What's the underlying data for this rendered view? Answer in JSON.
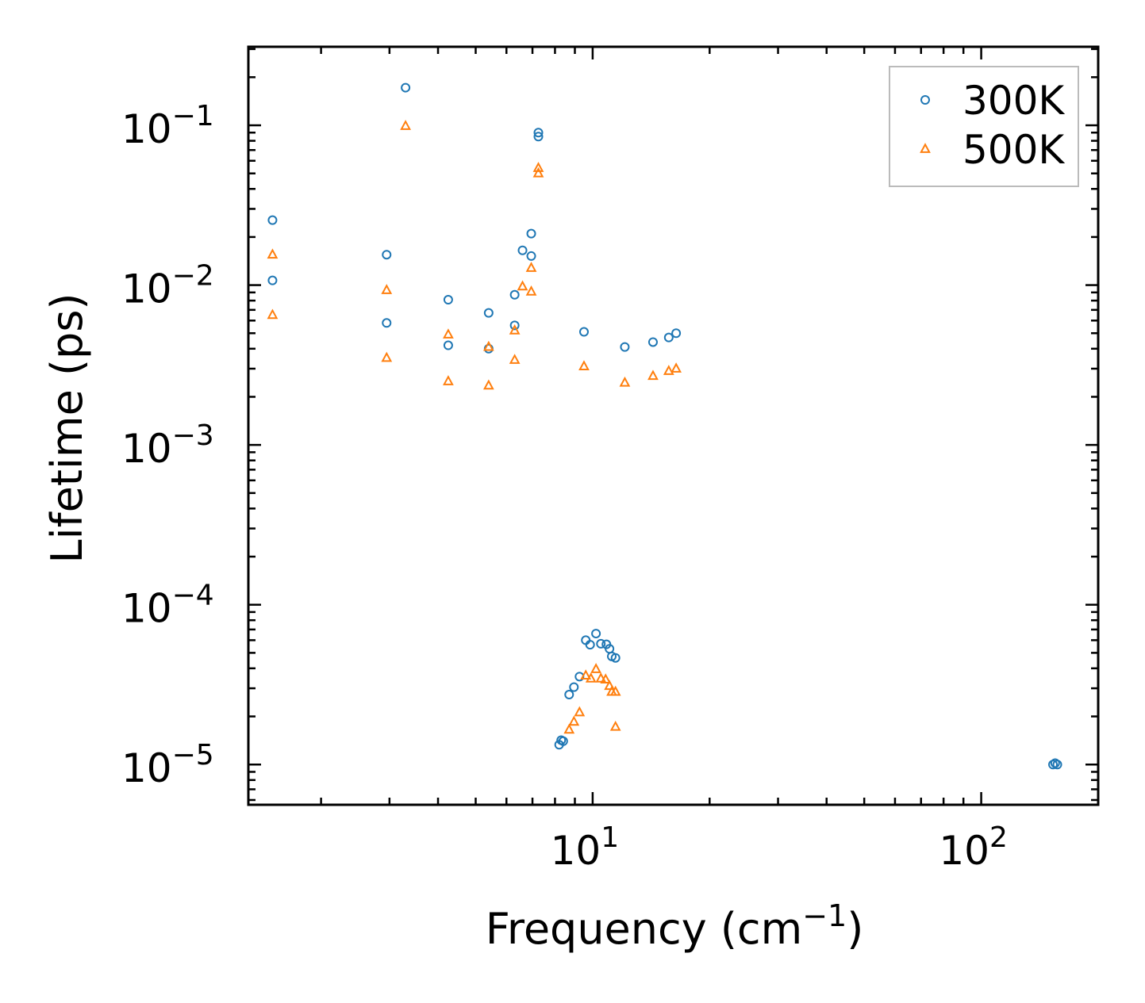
{
  "chart_data": {
    "type": "scatter",
    "title": "",
    "xlabel": "Frequency (cm",
    "xlabel_sup": "−1",
    "xlabel_close": ")",
    "ylabel": "Lifetime (ps)",
    "xscale": "log",
    "yscale": "log",
    "xlim": [
      1.3,
      200
    ],
    "ylim": [
      5.6e-06,
      0.31
    ],
    "x_ticks": [
      {
        "value": 10,
        "base": "10",
        "exp": "1"
      },
      {
        "value": 100,
        "base": "10",
        "exp": "2"
      }
    ],
    "y_ticks": [
      {
        "value": 0.1,
        "base": "10",
        "exp": "−1"
      },
      {
        "value": 0.01,
        "base": "10",
        "exp": "−2"
      },
      {
        "value": 0.001,
        "base": "10",
        "exp": "−3"
      },
      {
        "value": 0.0001,
        "base": "10",
        "exp": "−4"
      },
      {
        "value": 1e-05,
        "base": "10",
        "exp": "−5"
      }
    ],
    "legend_position": "top-right",
    "series": [
      {
        "name": "300K",
        "marker": "circle",
        "color": "#1f77b4",
        "points": [
          [
            1.5,
            0.0255
          ],
          [
            1.5,
            0.0107
          ],
          [
            2.95,
            0.0155
          ],
          [
            2.95,
            0.0058
          ],
          [
            3.3,
            0.172
          ],
          [
            4.25,
            0.0081
          ],
          [
            4.25,
            0.0042
          ],
          [
            5.4,
            0.0067
          ],
          [
            5.4,
            0.004
          ],
          [
            6.3,
            0.0087
          ],
          [
            6.3,
            0.0056
          ],
          [
            6.6,
            0.0165
          ],
          [
            6.95,
            0.021
          ],
          [
            6.95,
            0.0152
          ],
          [
            7.25,
            0.09
          ],
          [
            7.25,
            0.085
          ],
          [
            9.5,
            0.0051
          ],
          [
            12.1,
            0.0041
          ],
          [
            14.3,
            0.0044
          ],
          [
            15.7,
            0.0047
          ],
          [
            16.4,
            0.005
          ],
          [
            8.2,
            1.33e-05
          ],
          [
            8.3,
            1.42e-05
          ],
          [
            8.4,
            1.4e-05
          ],
          [
            8.7,
            2.74e-05
          ],
          [
            8.95,
            3.05e-05
          ],
          [
            9.25,
            3.55e-05
          ],
          [
            9.6,
            6e-05
          ],
          [
            9.85,
            5.62e-05
          ],
          [
            10.2,
            6.6e-05
          ],
          [
            10.5,
            5.7e-05
          ],
          [
            10.85,
            5.65e-05
          ],
          [
            11.05,
            5.3e-05
          ],
          [
            11.2,
            4.75e-05
          ],
          [
            11.45,
            4.65e-05
          ],
          [
            153,
            1e-05
          ],
          [
            155,
            1.02e-05
          ],
          [
            157,
            1e-05
          ]
        ]
      },
      {
        "name": "500K",
        "marker": "triangle",
        "color": "#ff7f0e",
        "points": [
          [
            1.5,
            0.0155
          ],
          [
            1.5,
            0.0065
          ],
          [
            2.95,
            0.0093
          ],
          [
            2.95,
            0.0035
          ],
          [
            3.3,
            0.099
          ],
          [
            4.25,
            0.0049
          ],
          [
            4.25,
            0.0025
          ],
          [
            5.4,
            0.0041
          ],
          [
            5.4,
            0.00235
          ],
          [
            6.3,
            0.0052
          ],
          [
            6.3,
            0.0034
          ],
          [
            6.6,
            0.0098
          ],
          [
            6.95,
            0.0128
          ],
          [
            6.95,
            0.0091
          ],
          [
            7.25,
            0.054
          ],
          [
            7.25,
            0.05
          ],
          [
            9.5,
            0.0031
          ],
          [
            12.1,
            0.00245
          ],
          [
            14.3,
            0.0027
          ],
          [
            15.7,
            0.0029
          ],
          [
            16.4,
            0.003
          ],
          [
            8.7,
            1.65e-05
          ],
          [
            8.95,
            1.85e-05
          ],
          [
            9.25,
            2.12e-05
          ],
          [
            9.6,
            3.6e-05
          ],
          [
            9.9,
            3.45e-05
          ],
          [
            10.2,
            3.95e-05
          ],
          [
            10.5,
            3.45e-05
          ],
          [
            10.8,
            3.4e-05
          ],
          [
            11.05,
            3.1e-05
          ],
          [
            11.2,
            2.85e-05
          ],
          [
            11.45,
            2.85e-05
          ],
          [
            11.45,
            1.72e-05
          ]
        ]
      }
    ]
  }
}
